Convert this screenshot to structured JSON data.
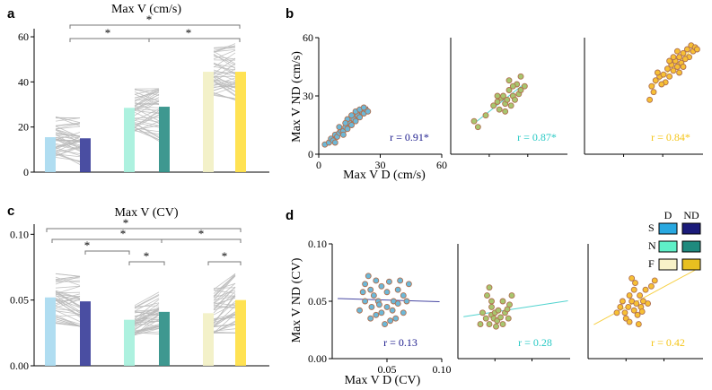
{
  "colors": {
    "S_D": "#a9daf0",
    "S_ND": "#3b3f9a",
    "N_D": "#a6f0dc",
    "N_ND": "#2e8f87",
    "F_D": "#f2f0c4",
    "F_ND": "#ffe044",
    "scatter_S_fill": "#6cb8d8",
    "scatter_N_fill": "#a8c66e",
    "scatter_F_fill": "#f7c034",
    "scatter_edge": "#b07050",
    "r_S": "#1a1a8c",
    "r_N": "#27c9c4",
    "r_F": "#f5c518"
  },
  "chart_data": [
    {
      "panel": "a",
      "type": "bar",
      "title": "Max V (cm/s)",
      "ylim": [
        0,
        62
      ],
      "yticks": [
        0,
        20,
        40,
        60
      ],
      "categories": [
        "S-D",
        "S-ND",
        "N-D",
        "N-ND",
        "F-D",
        "F-ND"
      ],
      "values": [
        15.5,
        15,
        28.5,
        29,
        44.5,
        44.5
      ],
      "paired_ranges": [
        [
          3,
          25
        ],
        [
          3,
          24
        ],
        [
          14,
          37
        ],
        [
          12,
          37
        ],
        [
          32,
          57
        ],
        [
          32,
          57
        ]
      ],
      "significance": [
        {
          "from": "S",
          "to": "F",
          "label": "*"
        },
        {
          "from": "S",
          "to": "N",
          "label": "*"
        },
        {
          "from": "N",
          "to": "F",
          "label": "*"
        }
      ]
    },
    {
      "panel": "c",
      "type": "bar",
      "title": "Max V (CV)",
      "ylim": [
        0,
        0.105
      ],
      "yticks": [
        "0.00",
        "0.05",
        "0.10"
      ],
      "categories": [
        "S-D",
        "S-ND",
        "N-D",
        "N-ND",
        "F-D",
        "F-ND"
      ],
      "values": [
        0.052,
        0.049,
        0.035,
        0.041,
        0.04,
        0.05
      ],
      "paired_ranges": [
        [
          0.026,
          0.07
        ],
        [
          0.03,
          0.068
        ],
        [
          0.022,
          0.048
        ],
        [
          0.02,
          0.056
        ],
        [
          0.025,
          0.068
        ],
        [
          0.025,
          0.07
        ]
      ],
      "significance": [
        {
          "from": "S",
          "to": "F",
          "label": "*"
        },
        {
          "from": "S",
          "to": "N",
          "label": "*"
        },
        {
          "from": "S",
          "to": "N",
          "label": "*"
        },
        {
          "from": "N",
          "to": "F",
          "label": "*"
        },
        {
          "from": "N-D",
          "to": "N-ND",
          "label": "*"
        },
        {
          "from": "F-D",
          "to": "F-ND",
          "label": "*"
        }
      ]
    },
    {
      "panel": "b",
      "type": "scatter",
      "xlabel": "Max V D (cm/s)",
      "ylabel": "Max V ND (cm/s)",
      "xlim": [
        0,
        60
      ],
      "ylim": [
        0,
        60
      ],
      "xticks": [
        "0",
        "30",
        "60"
      ],
      "yticks": [
        "0",
        "30",
        "60"
      ],
      "series": [
        {
          "name": "S",
          "r": "r = 0.91*",
          "points": [
            [
              3,
              5
            ],
            [
              5,
              6
            ],
            [
              6,
              8
            ],
            [
              7,
              7
            ],
            [
              8,
              10
            ],
            [
              9,
              9
            ],
            [
              10,
              11
            ],
            [
              11,
              12
            ],
            [
              12,
              12
            ],
            [
              13,
              14
            ],
            [
              14,
              13
            ],
            [
              15,
              16
            ],
            [
              16,
              15
            ],
            [
              17,
              18
            ],
            [
              18,
              17
            ],
            [
              19,
              20
            ],
            [
              20,
              19
            ],
            [
              21,
              22
            ],
            [
              22,
              21
            ],
            [
              23,
              23
            ],
            [
              24,
              22
            ],
            [
              12,
              10
            ],
            [
              14,
              18
            ],
            [
              10,
              14
            ],
            [
              18,
              22
            ],
            [
              20,
              23
            ],
            [
              8,
              6
            ],
            [
              16,
              20
            ],
            [
              22,
              24
            ],
            [
              13,
              16
            ]
          ]
        },
        {
          "name": "N",
          "r": "r = 0.87*",
          "points": [
            [
              12,
              17
            ],
            [
              14,
              14
            ],
            [
              18,
              20
            ],
            [
              22,
              25
            ],
            [
              24,
              27
            ],
            [
              26,
              29
            ],
            [
              28,
              26
            ],
            [
              30,
              33
            ],
            [
              32,
              30
            ],
            [
              34,
              36
            ],
            [
              35,
              31
            ],
            [
              36,
              40
            ],
            [
              38,
              35
            ],
            [
              29,
              28
            ],
            [
              27,
              30
            ],
            [
              31,
              25
            ],
            [
              33,
              28
            ],
            [
              25,
              23
            ],
            [
              30,
              38
            ],
            [
              36,
              33
            ],
            [
              24,
              30
            ],
            [
              28,
              22
            ],
            [
              32,
              35
            ]
          ]
        },
        {
          "name": "F",
          "r": "r = 0.84*",
          "points": [
            [
              33,
              28
            ],
            [
              34,
              35
            ],
            [
              35,
              32
            ],
            [
              36,
              38
            ],
            [
              38,
              40
            ],
            [
              40,
              41
            ],
            [
              42,
              44
            ],
            [
              43,
              40
            ],
            [
              44,
              46
            ],
            [
              45,
              43
            ],
            [
              46,
              48
            ],
            [
              47,
              45
            ],
            [
              48,
              50
            ],
            [
              49,
              47
            ],
            [
              50,
              52
            ],
            [
              52,
              54
            ],
            [
              53,
              50
            ],
            [
              54,
              56
            ],
            [
              55,
              53
            ],
            [
              56,
              55
            ],
            [
              57,
              54
            ],
            [
              41,
              37
            ],
            [
              45,
              50
            ],
            [
              50,
              45
            ],
            [
              47,
              53
            ],
            [
              37,
              42
            ],
            [
              43,
              48
            ],
            [
              51,
              49
            ],
            [
              39,
              36
            ],
            [
              48,
              42
            ]
          ]
        }
      ]
    },
    {
      "panel": "d",
      "type": "scatter",
      "xlabel": "Max V D (CV)",
      "ylabel": "Max V ND (CV)",
      "xlim": [
        0,
        0.1
      ],
      "ylim": [
        0,
        0.1
      ],
      "xticks": [
        "0.05",
        "0.10"
      ],
      "yticks": [
        "0.00",
        "0.05",
        "0.10"
      ],
      "series": [
        {
          "name": "S",
          "r": "r = 0.13",
          "points": [
            [
              0.025,
              0.042
            ],
            [
              0.03,
              0.065
            ],
            [
              0.03,
              0.05
            ],
            [
              0.033,
              0.072
            ],
            [
              0.035,
              0.06
            ],
            [
              0.036,
              0.045
            ],
            [
              0.038,
              0.055
            ],
            [
              0.04,
              0.068
            ],
            [
              0.04,
              0.038
            ],
            [
              0.042,
              0.05
            ],
            [
              0.045,
              0.063
            ],
            [
              0.045,
              0.04
            ],
            [
              0.048,
              0.03
            ],
            [
              0.05,
              0.058
            ],
            [
              0.05,
              0.045
            ],
            [
              0.052,
              0.067
            ],
            [
              0.055,
              0.042
            ],
            [
              0.056,
              0.05
            ],
            [
              0.058,
              0.035
            ],
            [
              0.06,
              0.06
            ],
            [
              0.06,
              0.048
            ],
            [
              0.062,
              0.068
            ],
            [
              0.065,
              0.04
            ],
            [
              0.065,
              0.055
            ],
            [
              0.068,
              0.05
            ],
            [
              0.07,
              0.065
            ],
            [
              0.035,
              0.035
            ],
            [
              0.028,
              0.058
            ],
            [
              0.043,
              0.047
            ],
            [
              0.053,
              0.033
            ]
          ]
        },
        {
          "name": "N",
          "r": "r = 0.28",
          "points": [
            [
              0.02,
              0.03
            ],
            [
              0.022,
              0.04
            ],
            [
              0.025,
              0.035
            ],
            [
              0.026,
              0.055
            ],
            [
              0.028,
              0.03
            ],
            [
              0.03,
              0.038
            ],
            [
              0.03,
              0.045
            ],
            [
              0.032,
              0.035
            ],
            [
              0.033,
              0.04
            ],
            [
              0.035,
              0.033
            ],
            [
              0.036,
              0.042
            ],
            [
              0.038,
              0.036
            ],
            [
              0.04,
              0.05
            ],
            [
              0.042,
              0.04
            ],
            [
              0.044,
              0.043
            ],
            [
              0.045,
              0.035
            ],
            [
              0.048,
              0.055
            ],
            [
              0.028,
              0.062
            ],
            [
              0.034,
              0.028
            ],
            [
              0.04,
              0.03
            ],
            [
              0.046,
              0.047
            ],
            [
              0.03,
              0.05
            ]
          ]
        },
        {
          "name": "F",
          "r": "r = 0.42",
          "points": [
            [
              0.025,
              0.04
            ],
            [
              0.028,
              0.045
            ],
            [
              0.03,
              0.05
            ],
            [
              0.032,
              0.04
            ],
            [
              0.033,
              0.035
            ],
            [
              0.035,
              0.045
            ],
            [
              0.036,
              0.055
            ],
            [
              0.038,
              0.05
            ],
            [
              0.04,
              0.06
            ],
            [
              0.04,
              0.042
            ],
            [
              0.042,
              0.048
            ],
            [
              0.043,
              0.038
            ],
            [
              0.045,
              0.055
            ],
            [
              0.046,
              0.045
            ],
            [
              0.048,
              0.05
            ],
            [
              0.05,
              0.06
            ],
            [
              0.052,
              0.048
            ],
            [
              0.055,
              0.063
            ],
            [
              0.058,
              0.068
            ],
            [
              0.038,
              0.07
            ],
            [
              0.041,
              0.066
            ],
            [
              0.044,
              0.03
            ],
            [
              0.036,
              0.032
            ],
            [
              0.047,
              0.041
            ]
          ]
        }
      ]
    }
  ],
  "panel_letters": {
    "a": "a",
    "b": "b",
    "c": "c",
    "d": "d"
  },
  "legend": {
    "headers": [
      "D",
      "ND"
    ],
    "rows": [
      {
        "label": "S",
        "d": "#29a8e0",
        "nd": "#1b1b7a"
      },
      {
        "label": "N",
        "d": "#5ff0c8",
        "nd": "#1e8a7e"
      },
      {
        "label": "F",
        "d": "#f8f2c8",
        "nd": "#e8c020"
      }
    ]
  }
}
